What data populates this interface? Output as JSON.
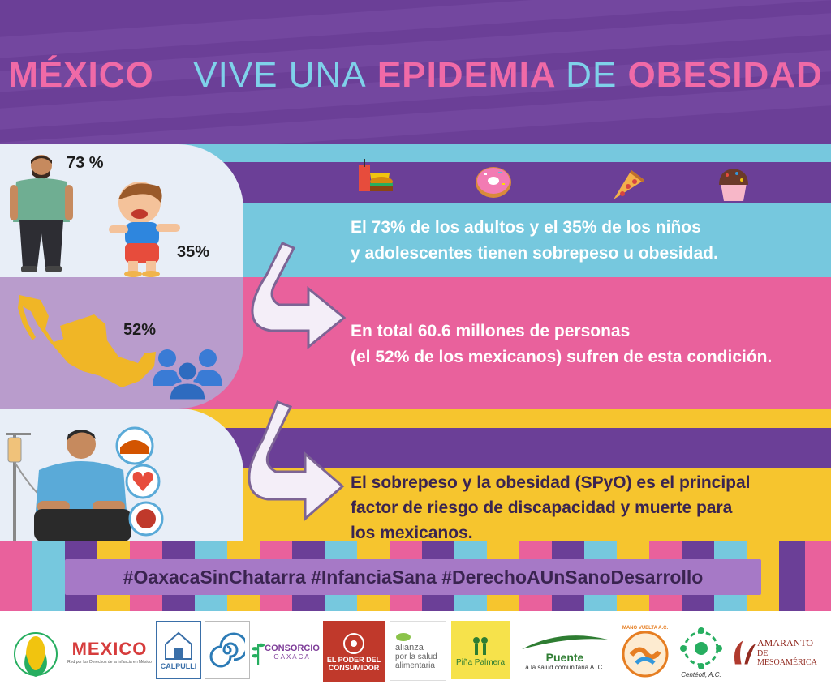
{
  "header": {
    "title_w1": "MÉXICO",
    "title_w2": "VIVE UNA",
    "title_w3": "EPIDEMIA",
    "title_w4": "DE",
    "title_w5": "OBESIDAD"
  },
  "section1": {
    "pct_adults": "73 %",
    "pct_children": "35%",
    "line1": "El 73% de los adultos y el 35% de los niños",
    "line2": "y adolescentes tienen  sobrepeso u obesidad.",
    "icons": [
      "fast-food-icon",
      "donut-icon",
      "pizza-icon",
      "cupcake-icon"
    ]
  },
  "section2": {
    "pct": "52%",
    "line1": "En total 60.6 millones de personas",
    "line2": "(el 52% de los mexicanos) sufren de esta condición."
  },
  "section3": {
    "line1": "El sobrepeso y la obesidad (SPyO) es el principal",
    "line2": "factor de riesgo de discapacidad y muerte para",
    "line3": "los mexicanos."
  },
  "hashtags": "#OaxacaSinChatarra  #InfanciaSana  #DerechoAUnSanoDesarrollo",
  "logos": {
    "mexico": "MEXICO",
    "mexico_sub": "Red por los Derechos de la Infancia en México",
    "calpulli": "CALPULLI",
    "consorcio_1": "CONSORCIO",
    "consorcio_2": "OAXACA",
    "poder_1": "EL PODER DEL",
    "poder_2": "CONSUMIDOR",
    "alianza_1": "alianza",
    "alianza_2": "por la salud",
    "alianza_3": "alimentaria",
    "pina": "Piña Palmera",
    "puente_1": "Puente",
    "puente_2": "a la salud comunitaria A. C.",
    "mano": "MANO VUELTA A.C.",
    "centeotl": "Centéotl, A.C.",
    "amaranto_1": "AMARANTO",
    "amaranto_2": "DE MESOAMÉRICA"
  },
  "colors": {
    "purple": "#6b3f97",
    "cyan": "#76c8de",
    "pink": "#e9619c",
    "yellow": "#f6c52e",
    "lilac": "#b99ccc"
  }
}
